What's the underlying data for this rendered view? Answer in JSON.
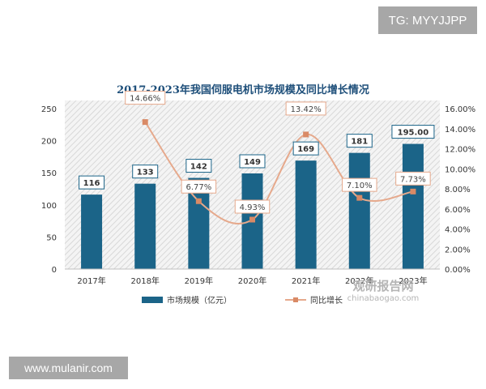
{
  "badges": {
    "top_right": "TG: MYYJJPP",
    "bottom_left": "www.mulanir.com"
  },
  "watermark": {
    "cn": "观研报告网",
    "en": "chinabaogao.com"
  },
  "colors": {
    "bar": "#1b6488",
    "line": "#e6a98c",
    "marker": "#d98a66"
  },
  "chart_data": {
    "type": "bar",
    "title": "2017-2023年我国伺服电机市场规模及同比增长情况",
    "categories": [
      "2017年",
      "2018年",
      "2019年",
      "2020年",
      "2021年",
      "2022年",
      "2023年"
    ],
    "series": [
      {
        "name": "市场规模（亿元）",
        "type": "bar",
        "axis": "left",
        "values": [
          116,
          133,
          142,
          149,
          169,
          181,
          195.0
        ],
        "labels": [
          "116",
          "133",
          "142",
          "149",
          "169",
          "181",
          "195.00"
        ]
      },
      {
        "name": "同比增长",
        "type": "line",
        "axis": "right",
        "values": [
          null,
          14.66,
          6.77,
          4.93,
          13.42,
          7.1,
          7.73
        ],
        "labels": [
          "",
          "14.66%",
          "6.77%",
          "4.93%",
          "13.42%",
          "7.10%",
          "7.73%"
        ]
      }
    ],
    "ylim_left": [
      0,
      250
    ],
    "yticks_left": [
      "0",
      "50",
      "100",
      "150",
      "200",
      "250"
    ],
    "ylim_right": [
      0,
      16
    ],
    "yticks_right": [
      "0.00%",
      "2.00%",
      "4.00%",
      "6.00%",
      "8.00%",
      "10.00%",
      "12.00%",
      "14.00%",
      "16.00%"
    ],
    "legend": "bottom",
    "grid": false
  }
}
